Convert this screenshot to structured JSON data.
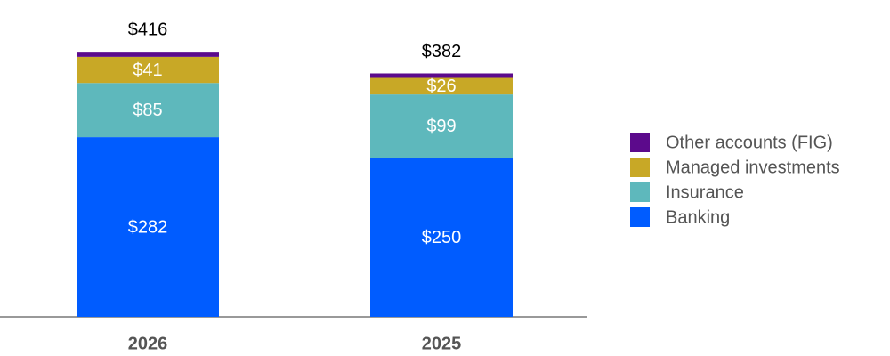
{
  "chart_data": {
    "type": "stacked_bar",
    "categories": [
      "2026",
      "2025"
    ],
    "series": [
      {
        "name": "Banking",
        "color": "#005cff",
        "values": [
          282,
          250
        ],
        "value_labels": [
          "$282",
          "$250"
        ]
      },
      {
        "name": "Insurance",
        "color": "#5eb8bc",
        "values": [
          85,
          99
        ],
        "value_labels": [
          "$85",
          "$99"
        ]
      },
      {
        "name": "Managed investments",
        "color": "#c8a826",
        "values": [
          41,
          26
        ],
        "value_labels": [
          "$41",
          "$26"
        ]
      },
      {
        "name": "Other accounts (FIG)",
        "color": "#5c0a8c",
        "values": [
          8,
          7
        ]
      }
    ],
    "totals": [
      416,
      382
    ],
    "total_labels": [
      "$416",
      "$382"
    ]
  }
}
